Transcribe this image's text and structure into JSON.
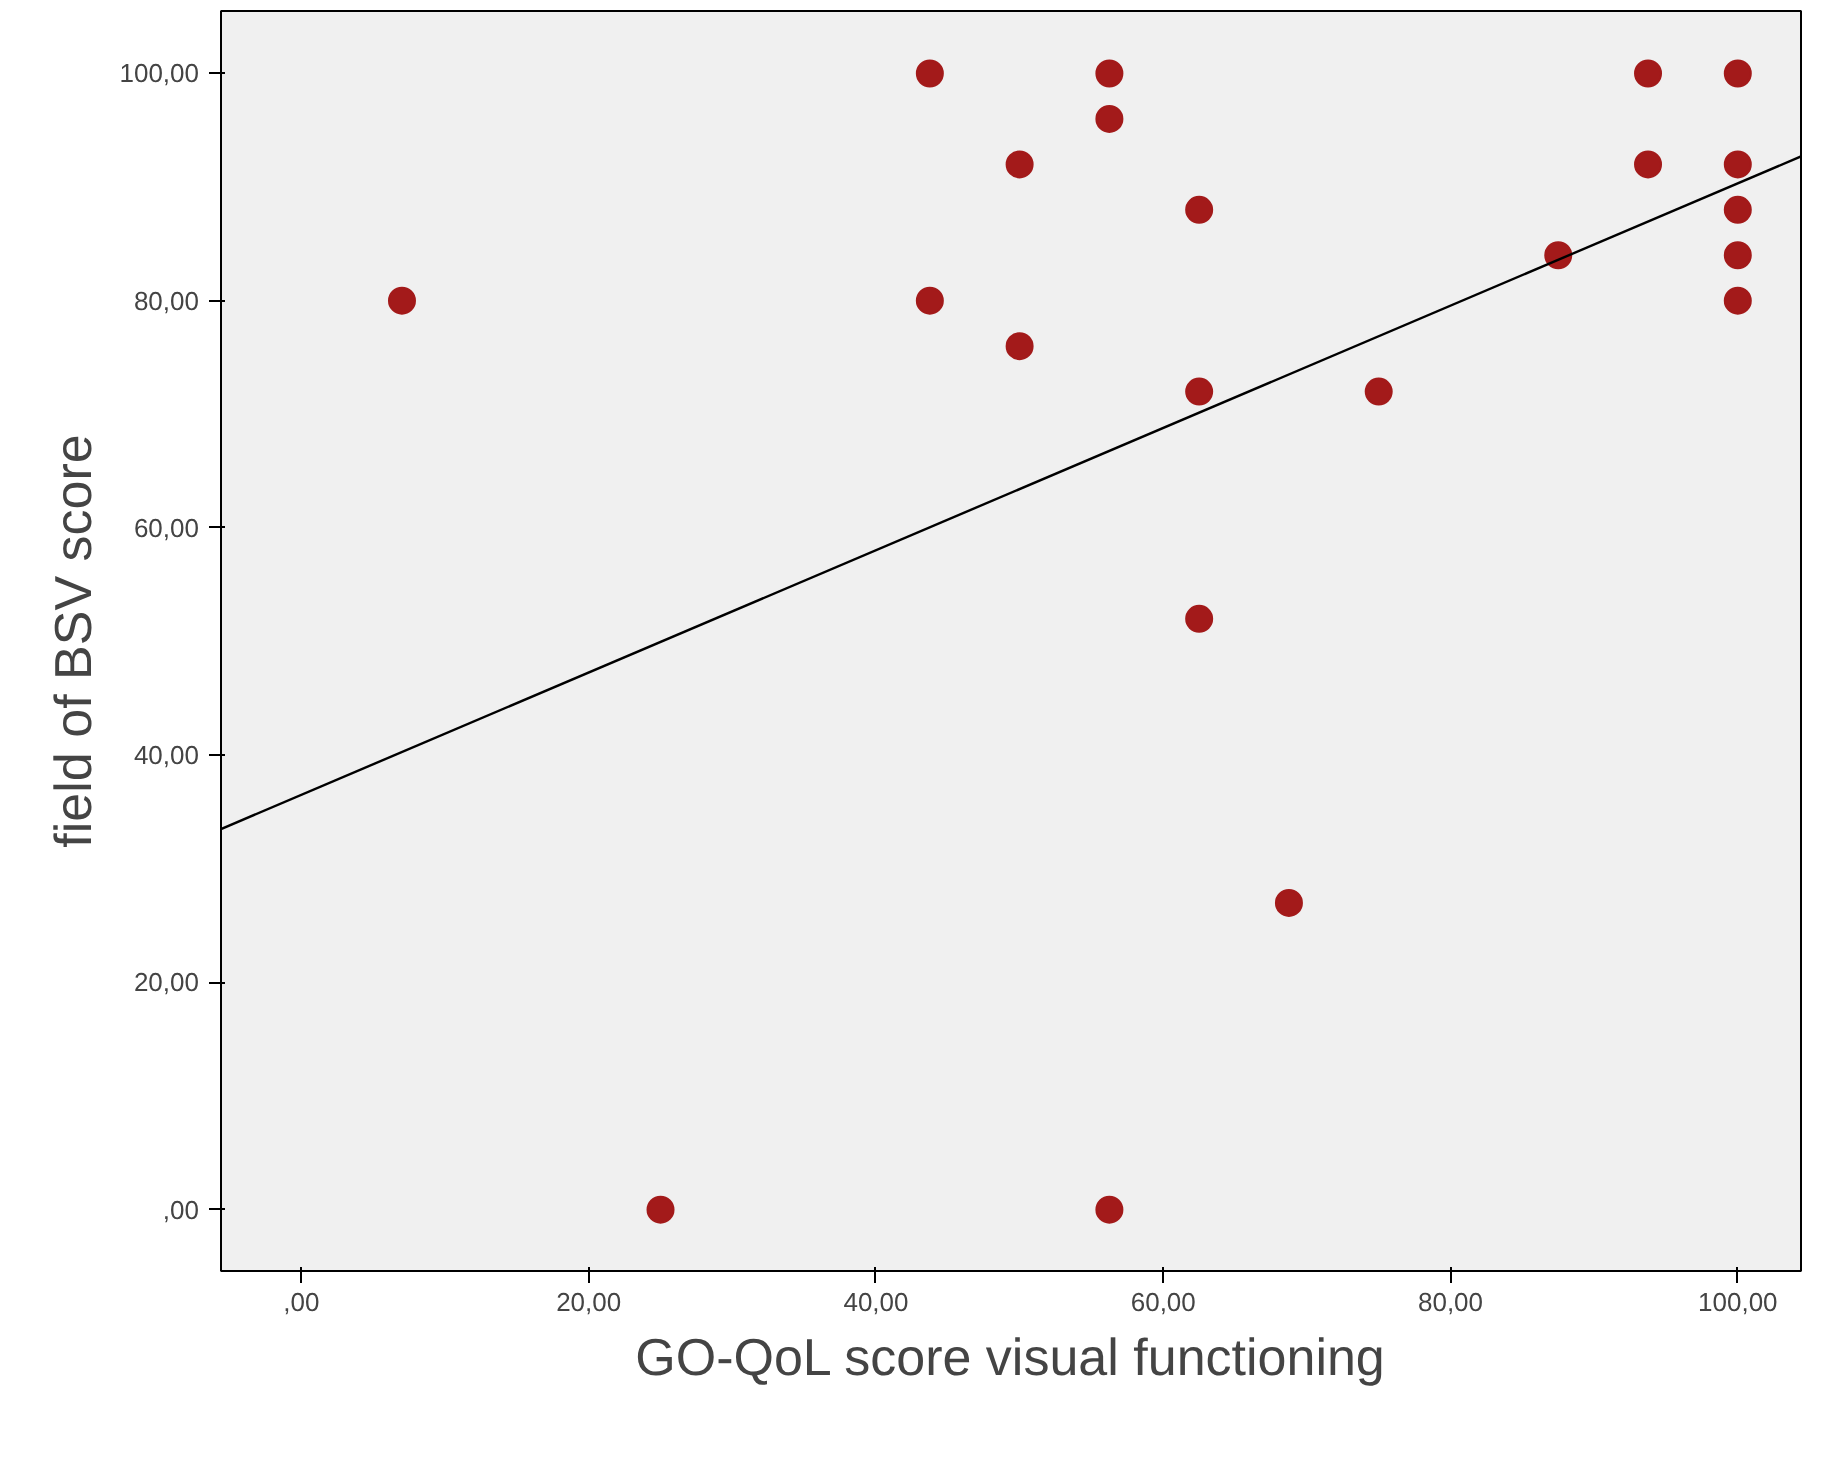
{
  "chart_data": {
    "type": "scatter",
    "xlabel": "GO-QoL score visual functioning",
    "ylabel": "field of BSV score",
    "xlim": [
      -5.6,
      104.4
    ],
    "ylim": [
      -5.4,
      105.5
    ],
    "xticks": [
      {
        "value": 0,
        "label": ",00"
      },
      {
        "value": 20,
        "label": "20,00"
      },
      {
        "value": 40,
        "label": "40,00"
      },
      {
        "value": 60,
        "label": "60,00"
      },
      {
        "value": 80,
        "label": "80,00"
      },
      {
        "value": 100,
        "label": "100,00"
      }
    ],
    "yticks": [
      {
        "value": 0,
        "label": ",00"
      },
      {
        "value": 20,
        "label": "20,00"
      },
      {
        "value": 40,
        "label": "40,00"
      },
      {
        "value": 60,
        "label": "60,00"
      },
      {
        "value": 80,
        "label": "80,00"
      },
      {
        "value": 100,
        "label": "100,00"
      }
    ],
    "grid": false,
    "series": [
      {
        "marker": "circle",
        "color": "#a31a1a",
        "x": [
          7,
          25,
          43.75,
          43.75,
          50,
          50,
          56.25,
          56.25,
          56.25,
          62.5,
          62.5,
          62.5,
          68.75,
          75,
          87.5,
          93.75,
          93.75,
          100,
          100,
          100,
          100,
          100
        ],
        "values": [
          80,
          0,
          100,
          80,
          92,
          76,
          100,
          96,
          0,
          88,
          72,
          52,
          27,
          72,
          84,
          100,
          92,
          100,
          92,
          88,
          84,
          80
        ]
      },
      {
        "type": "line",
        "color": "#000000",
        "x": [
          -5.6,
          104.4
        ],
        "values": [
          33.5,
          92.7
        ]
      }
    ]
  }
}
